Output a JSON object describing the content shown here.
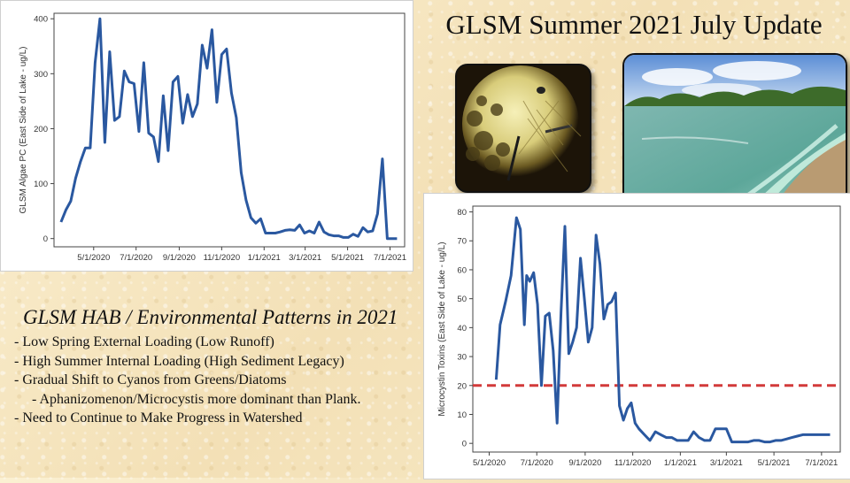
{
  "slide": {
    "title": "GLSM Summer 2021 July Update",
    "heading": "GLSM HAB / Environmental Patterns in 2021",
    "bullets": [
      {
        "text": "- Low Spring External Loading (Low Runoff)",
        "indent": false
      },
      {
        "text": "- High Summer Internal Loading (High Sediment Legacy)",
        "indent": false
      },
      {
        "text": "- Gradual Shift to Cyanos from Greens/Diatoms",
        "indent": false
      },
      {
        "text": "- Aphanizomenon/Microcystis more dominant than Plank.",
        "indent": true
      },
      {
        "text": "- Need to Continue to Make Progress in Watershed",
        "indent": false
      }
    ]
  },
  "chart_data": [
    {
      "type": "line",
      "ylabel": "GLSM Algae PC (East Side of Lake - ug/L)",
      "xlabel": "",
      "ylim": [
        -15,
        410
      ],
      "yticks": [
        0,
        100,
        200,
        300,
        400
      ],
      "xlim": [
        "2020-03-05",
        "2021-07-22"
      ],
      "xticks": [
        "5/1/2020",
        "7/1/2020",
        "9/1/2020",
        "11/1/2020",
        "1/1/2021",
        "3/1/2021",
        "5/1/2021",
        "7/1/2021"
      ],
      "xtick_dates": [
        "2020-05-01",
        "2020-07-01",
        "2020-09-01",
        "2020-11-01",
        "2021-01-01",
        "2021-03-01",
        "2021-05-01",
        "2021-07-01"
      ],
      "color": "#2a58a0",
      "series": [
        {
          "x": [
            "2020-03-15",
            "2020-03-22",
            "2020-03-29",
            "2020-04-05",
            "2020-04-12",
            "2020-04-19",
            "2020-04-26",
            "2020-05-03",
            "2020-05-10",
            "2020-05-17",
            "2020-05-24",
            "2020-05-31",
            "2020-06-07",
            "2020-06-14",
            "2020-06-21",
            "2020-06-28",
            "2020-07-05",
            "2020-07-12",
            "2020-07-19",
            "2020-07-26",
            "2020-08-02",
            "2020-08-09",
            "2020-08-16",
            "2020-08-23",
            "2020-08-30",
            "2020-09-06",
            "2020-09-13",
            "2020-09-20",
            "2020-09-27",
            "2020-10-04",
            "2020-10-11",
            "2020-10-18",
            "2020-10-25",
            "2020-11-01",
            "2020-11-08",
            "2020-11-15",
            "2020-11-22",
            "2020-11-29",
            "2020-12-06",
            "2020-12-13",
            "2020-12-20",
            "2020-12-27",
            "2021-01-03",
            "2021-01-10",
            "2021-01-17",
            "2021-01-24",
            "2021-01-31",
            "2021-02-07",
            "2021-02-14",
            "2021-02-21",
            "2021-02-28",
            "2021-03-07",
            "2021-03-14",
            "2021-03-21",
            "2021-03-28",
            "2021-04-04",
            "2021-04-11",
            "2021-04-18",
            "2021-04-25",
            "2021-05-02",
            "2021-05-09",
            "2021-05-16",
            "2021-05-23",
            "2021-05-30",
            "2021-06-06",
            "2021-06-13",
            "2021-06-20",
            "2021-06-27",
            "2021-07-04",
            "2021-07-11"
          ],
          "y": [
            30,
            52,
            68,
            110,
            140,
            165,
            165,
            320,
            400,
            175,
            340,
            215,
            222,
            305,
            285,
            282,
            195,
            320,
            192,
            185,
            140,
            260,
            160,
            285,
            295,
            210,
            262,
            222,
            245,
            352,
            310,
            380,
            248,
            335,
            345,
            265,
            220,
            120,
            70,
            38,
            28,
            36,
            10,
            10,
            10,
            12,
            15,
            16,
            15,
            25,
            10,
            14,
            10,
            30,
            12,
            7,
            5,
            5,
            2,
            2,
            8,
            4,
            20,
            12,
            14,
            45,
            145,
            0,
            0,
            0
          ]
        }
      ]
    },
    {
      "type": "line",
      "ylabel": "Microcystin Toxins (East Side of Lake - ug/L)",
      "xlabel": "",
      "ylim": [
        -3,
        82
      ],
      "yticks": [
        0,
        10,
        20,
        30,
        40,
        50,
        60,
        70,
        80
      ],
      "xlim": [
        "2020-04-10",
        "2021-07-25"
      ],
      "xticks": [
        "5/1/2020",
        "7/1/2020",
        "9/1/2020",
        "11/1/2020",
        "1/1/2021",
        "3/1/2021",
        "5/1/2021",
        "7/1/2021"
      ],
      "xtick_dates": [
        "2020-05-01",
        "2020-07-01",
        "2020-09-01",
        "2020-11-01",
        "2021-01-01",
        "2021-03-01",
        "2021-05-01",
        "2021-07-01"
      ],
      "color": "#2a58a0",
      "threshold": {
        "value": 20,
        "color": "#d23a3a"
      },
      "series": [
        {
          "x": [
            "2020-05-10",
            "2020-05-15",
            "2020-05-22",
            "2020-05-29",
            "2020-06-05",
            "2020-06-10",
            "2020-06-15",
            "2020-06-18",
            "2020-06-22",
            "2020-06-27",
            "2020-07-02",
            "2020-07-07",
            "2020-07-12",
            "2020-07-17",
            "2020-07-22",
            "2020-07-27",
            "2020-08-01",
            "2020-08-06",
            "2020-08-11",
            "2020-08-16",
            "2020-08-21",
            "2020-08-26",
            "2020-08-31",
            "2020-09-05",
            "2020-09-10",
            "2020-09-15",
            "2020-09-20",
            "2020-09-25",
            "2020-09-30",
            "2020-10-05",
            "2020-10-10",
            "2020-10-15",
            "2020-10-20",
            "2020-10-25",
            "2020-10-30",
            "2020-11-04",
            "2020-11-09",
            "2020-11-16",
            "2020-11-23",
            "2020-11-30",
            "2020-12-07",
            "2020-12-14",
            "2020-12-21",
            "2020-12-28",
            "2021-01-04",
            "2021-01-11",
            "2021-01-18",
            "2021-01-25",
            "2021-02-01",
            "2021-02-08",
            "2021-02-15",
            "2021-02-22",
            "2021-03-01",
            "2021-03-08",
            "2021-03-15",
            "2021-03-22",
            "2021-03-29",
            "2021-04-05",
            "2021-04-12",
            "2021-04-19",
            "2021-04-26",
            "2021-05-03",
            "2021-05-10",
            "2021-05-17",
            "2021-05-24",
            "2021-05-31",
            "2021-06-07",
            "2021-06-14",
            "2021-06-21",
            "2021-06-28",
            "2021-07-05",
            "2021-07-12"
          ],
          "y": [
            22,
            41,
            49,
            58,
            78,
            74,
            41,
            58,
            56,
            59,
            48,
            20,
            44,
            45,
            32,
            7,
            45,
            75,
            31,
            35,
            40,
            64,
            50,
            35,
            40,
            72,
            62,
            43,
            48,
            49,
            52,
            13,
            8,
            12,
            14,
            7,
            5,
            3,
            1,
            4,
            3,
            2,
            2,
            1,
            1,
            1,
            4,
            2,
            1,
            1,
            5,
            5,
            5,
            0.5,
            0.5,
            0.5,
            0.5,
            1,
            1,
            0.5,
            0.5,
            1,
            1,
            1.5,
            2,
            2.5,
            3,
            3,
            3,
            3,
            3,
            3
          ]
        }
      ]
    }
  ]
}
